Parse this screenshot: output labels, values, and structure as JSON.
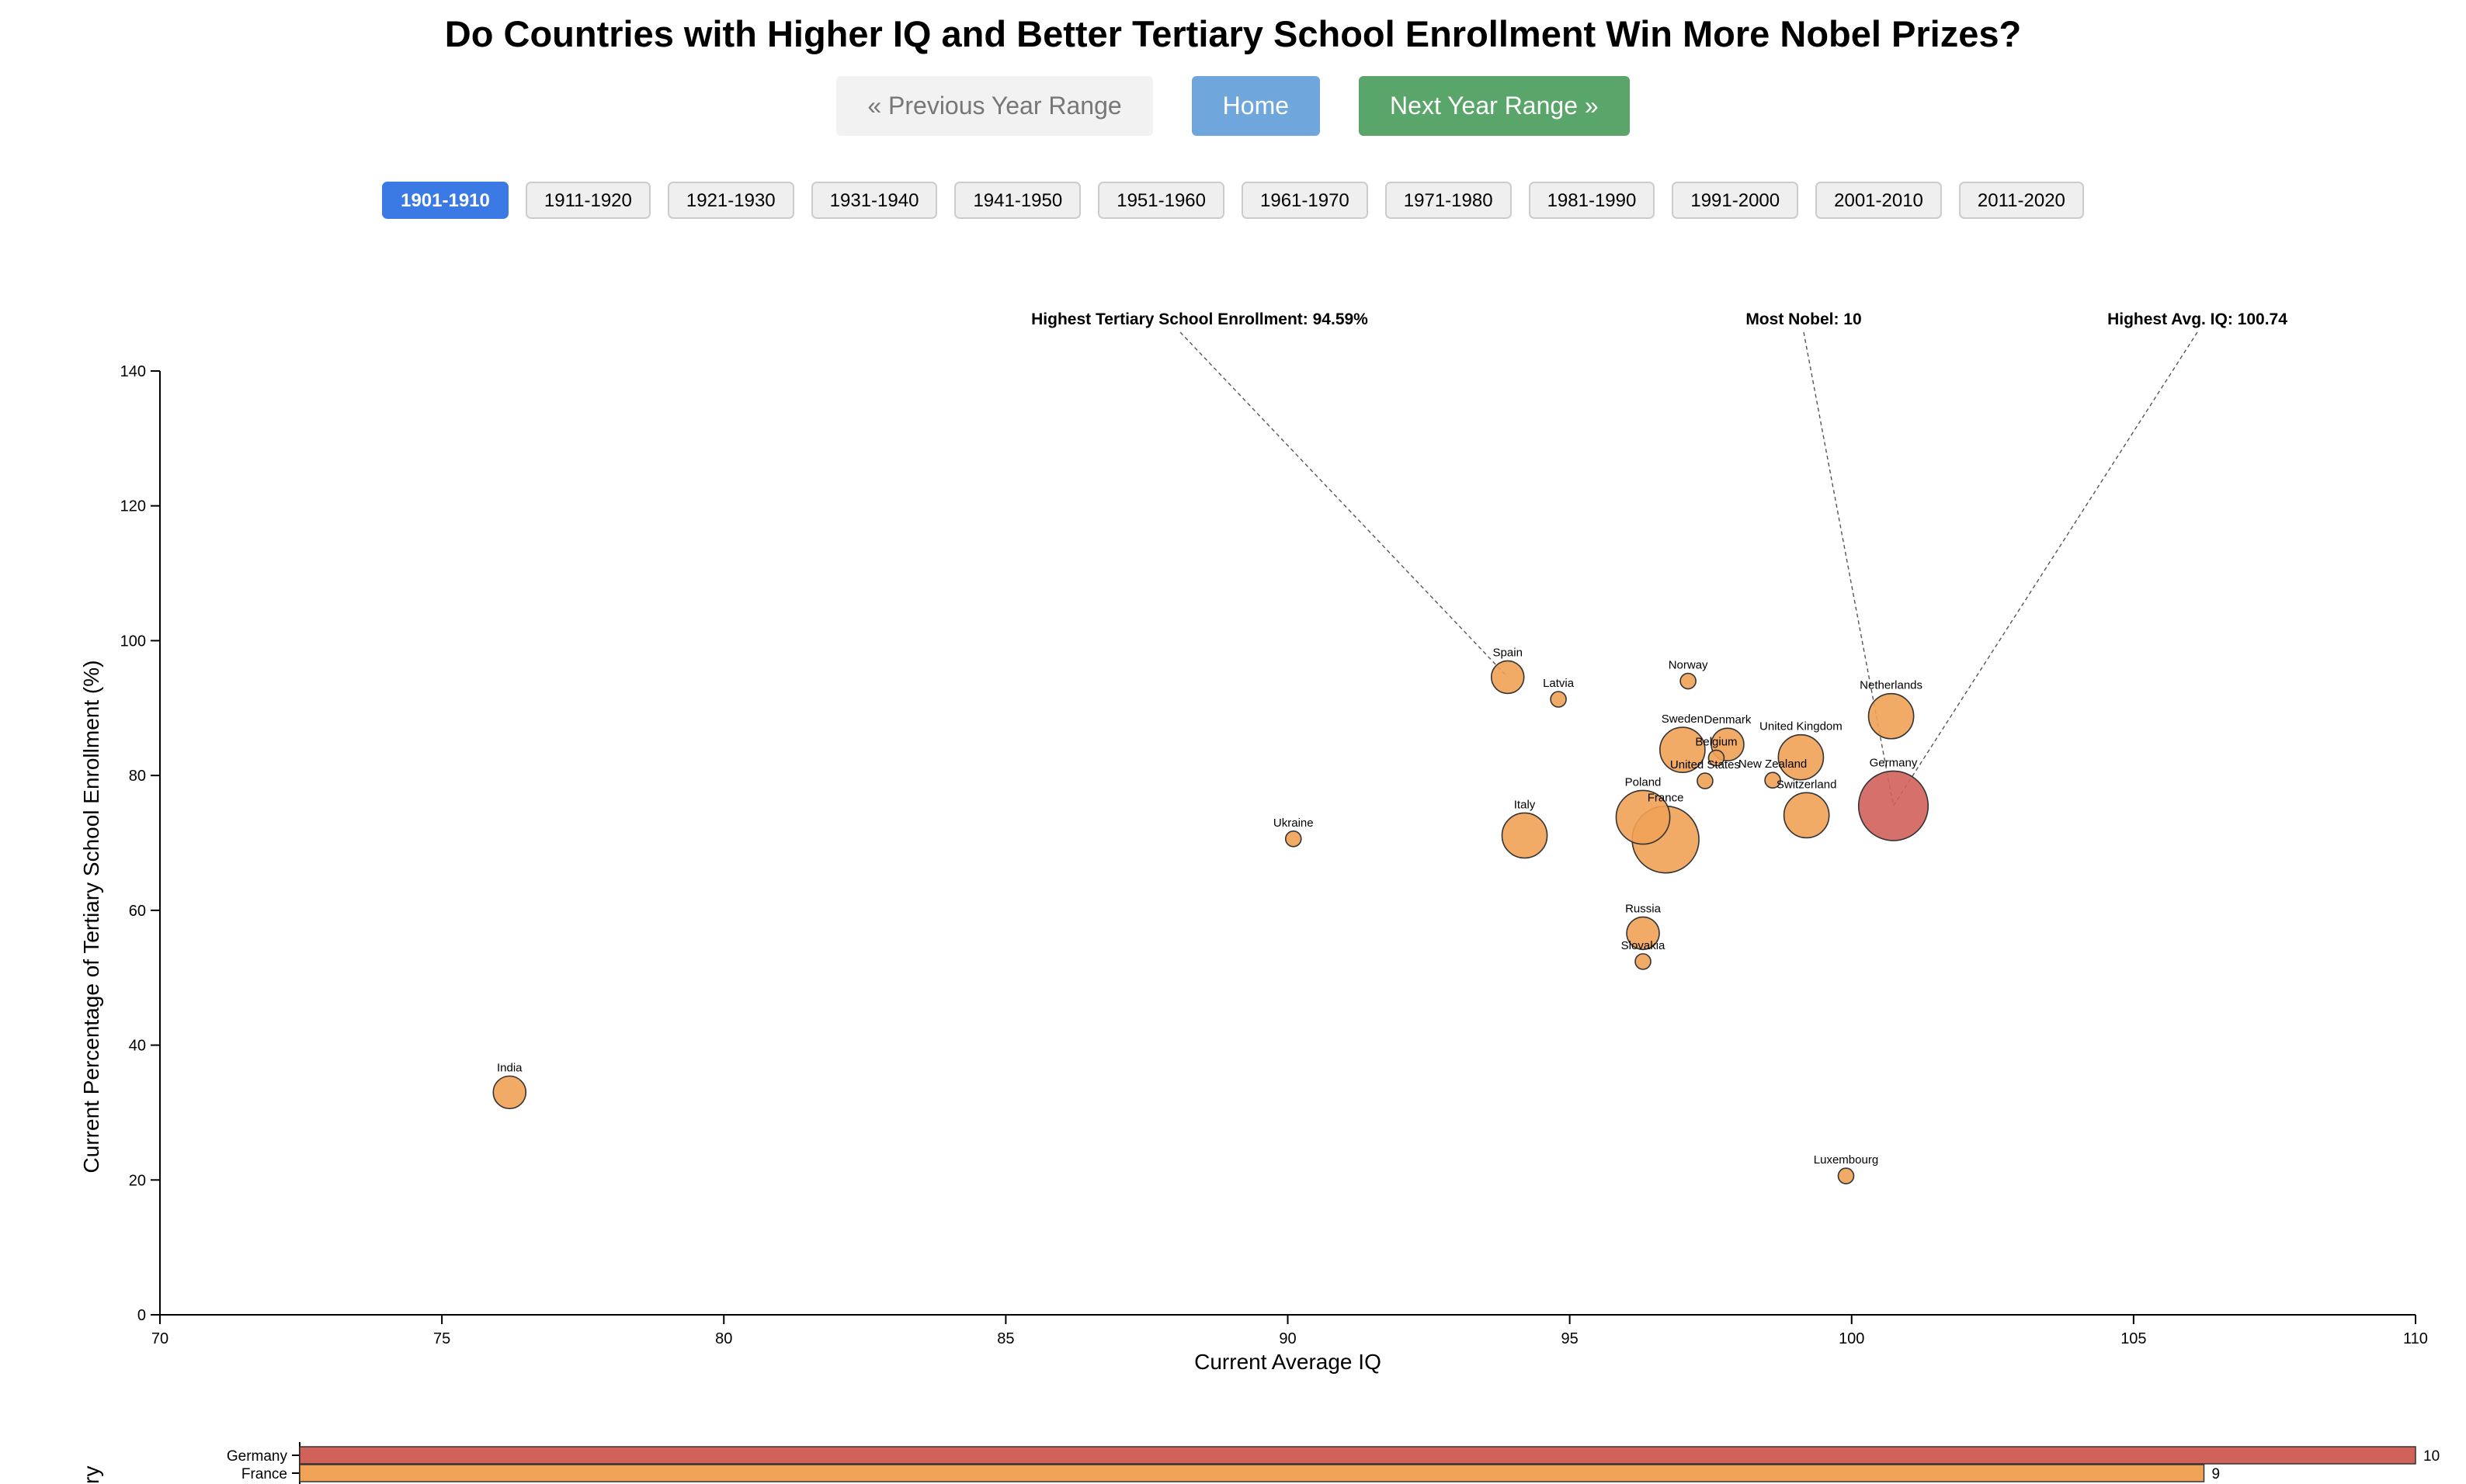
{
  "page": {
    "title": "Do Countries with Higher IQ and Better Tertiary School Enrollment Win More Nobel Prizes?"
  },
  "nav": {
    "prev_label": "« Previous Year Range",
    "home_label": "Home",
    "next_label": "Next Year Range »"
  },
  "year_ranges": [
    {
      "label": "1901-1910",
      "active": true
    },
    {
      "label": "1911-1920",
      "active": false
    },
    {
      "label": "1921-1930",
      "active": false
    },
    {
      "label": "1931-1940",
      "active": false
    },
    {
      "label": "1941-1950",
      "active": false
    },
    {
      "label": "1951-1960",
      "active": false
    },
    {
      "label": "1961-1970",
      "active": false
    },
    {
      "label": "1971-1980",
      "active": false
    },
    {
      "label": "1981-1990",
      "active": false
    },
    {
      "label": "1991-2000",
      "active": false
    },
    {
      "label": "2001-2010",
      "active": false
    },
    {
      "label": "2011-2020",
      "active": false
    }
  ],
  "colors": {
    "point_fill": "#f0a257",
    "highlight_fill": "#d0625a",
    "stroke": "#333333",
    "active_range": "#3b7ae4"
  },
  "chart_data": [
    {
      "type": "scatter",
      "title": "",
      "xlabel": "Current Average IQ",
      "ylabel": "Current Percentage of Tertiary School Enrollment (%)",
      "xlim": [
        70,
        110
      ],
      "ylim": [
        0,
        140
      ],
      "x_ticks": [
        70,
        75,
        80,
        85,
        90,
        95,
        100,
        105,
        110
      ],
      "y_ticks": [
        0,
        20,
        40,
        60,
        80,
        100,
        120,
        140
      ],
      "grid": false,
      "size_encoding": "Nobel prizes",
      "points": [
        {
          "name": "Spain",
          "x": 93.9,
          "y": 94.59,
          "nobel": 1
        },
        {
          "name": "Latvia",
          "x": 94.8,
          "y": 91.3,
          "nobel": 0
        },
        {
          "name": "Norway",
          "x": 97.1,
          "y": 94.0,
          "nobel": 0
        },
        {
          "name": "Netherlands",
          "x": 100.7,
          "y": 88.8,
          "nobel": 3
        },
        {
          "name": "Sweden",
          "x": 97.0,
          "y": 83.8,
          "nobel": 3
        },
        {
          "name": "Denmark",
          "x": 97.8,
          "y": 84.6,
          "nobel": 1
        },
        {
          "name": "Belgium",
          "x": 97.6,
          "y": 82.6,
          "nobel": 0
        },
        {
          "name": "United Kingdom",
          "x": 99.1,
          "y": 82.7,
          "nobel": 3
        },
        {
          "name": "United States",
          "x": 97.4,
          "y": 79.2,
          "nobel": 0
        },
        {
          "name": "New Zealand",
          "x": 98.6,
          "y": 79.3,
          "nobel": 0
        },
        {
          "name": "Germany",
          "x": 100.74,
          "y": 75.5,
          "nobel": 10,
          "highlight": true
        },
        {
          "name": "Switzerland",
          "x": 99.2,
          "y": 74.1,
          "nobel": 3
        },
        {
          "name": "Poland",
          "x": 96.3,
          "y": 73.8,
          "nobel": 5
        },
        {
          "name": "France",
          "x": 96.7,
          "y": 70.5,
          "nobel": 9
        },
        {
          "name": "Italy",
          "x": 94.2,
          "y": 71.1,
          "nobel": 3
        },
        {
          "name": "Ukraine",
          "x": 90.1,
          "y": 70.6,
          "nobel": 0
        },
        {
          "name": "Russia",
          "x": 96.3,
          "y": 56.6,
          "nobel": 1
        },
        {
          "name": "Slovakia",
          "x": 96.3,
          "y": 52.4,
          "nobel": 0
        },
        {
          "name": "India",
          "x": 76.2,
          "y": 33.0,
          "nobel": 1
        },
        {
          "name": "Luxembourg",
          "x": 99.9,
          "y": 20.6,
          "nobel": 0
        }
      ],
      "annotations": [
        {
          "text": "Highest Tertiary School Enrollment: 94.59%",
          "target": "Spain"
        },
        {
          "text": "Most Nobel: 10",
          "target": "Germany"
        },
        {
          "text": "Highest Avg. IQ: 100.74",
          "target": "Germany"
        }
      ]
    },
    {
      "type": "bar",
      "orientation": "horizontal",
      "ylabel": "ntry",
      "categories": [
        "Germany",
        "France"
      ],
      "values": [
        10,
        9
      ],
      "xlim": [
        0,
        10
      ]
    }
  ]
}
